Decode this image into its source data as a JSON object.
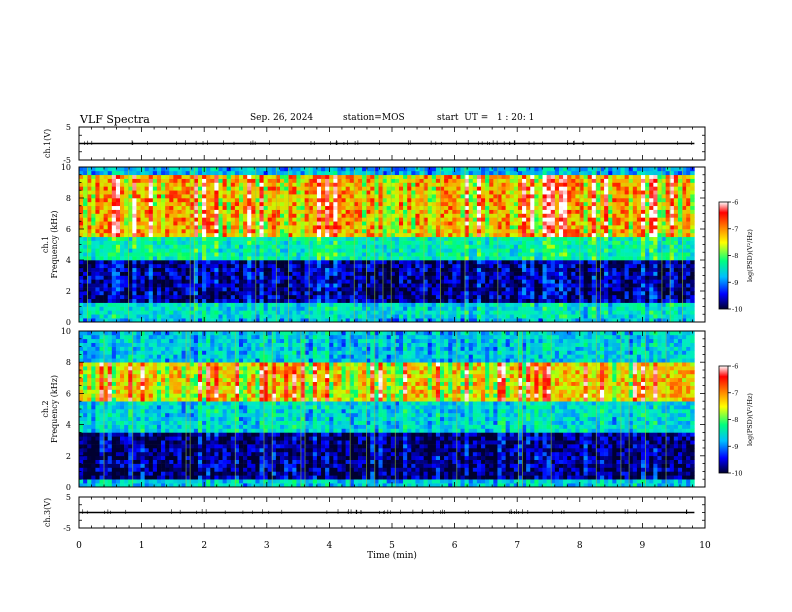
{
  "header": {
    "title": "VLF Spectra",
    "date": "Sep. 26, 2024",
    "station": "station=MOS",
    "start_ut": "start  UT =   1 : 20: 1"
  },
  "colors": {
    "spectrogram_scale": [
      "#000030",
      "#0000ff",
      "#00bfff",
      "#00ff7f",
      "#ffff00",
      "#ff8c00",
      "#ff0000",
      "#ffffff"
    ]
  },
  "chart_data": [
    {
      "type": "line",
      "panel": "ch1-waveform",
      "ylabel": "ch.1(V)",
      "ylim": [
        -5,
        5
      ],
      "yticks": [
        "5",
        "-5"
      ],
      "xlim": [
        0,
        10
      ],
      "series": [
        {
          "x": [
            0,
            9.83
          ],
          "y": [
            0,
            0
          ]
        }
      ]
    },
    {
      "type": "heatmap",
      "panel": "ch1-spectrogram",
      "ylabel_channel": "ch.1",
      "ylabel": "Frequency (kHz)",
      "ylim": [
        0,
        10
      ],
      "yticks": [
        "0",
        "2",
        "4",
        "6",
        "8",
        "10"
      ],
      "xlim": [
        0,
        10
      ],
      "data_end_min": 9.83,
      "colorbar": {
        "label": "log(PSD)(V²/Hz)",
        "range": [
          -10,
          -6
        ],
        "ticks": [
          "-6",
          "-7",
          "-8",
          "-9",
          "-10"
        ]
      },
      "bands": [
        {
          "f_min": 0.2,
          "f_max": 1.2,
          "log_psd": -8.5
        },
        {
          "f_min": 1.2,
          "f_max": 4.0,
          "log_psd": -9.7
        },
        {
          "f_min": 4.0,
          "f_max": 5.5,
          "log_psd": -8.3
        },
        {
          "f_min": 5.5,
          "f_max": 9.3,
          "log_psd": -7.0
        },
        {
          "f_min": 9.3,
          "f_max": 10.0,
          "log_psd": -8.8
        }
      ]
    },
    {
      "type": "heatmap",
      "panel": "ch2-spectrogram",
      "ylabel_channel": "ch.2",
      "ylabel": "Frequency (kHz)",
      "ylim": [
        0,
        10
      ],
      "yticks": [
        "0",
        "2",
        "4",
        "6",
        "8",
        "10"
      ],
      "xlim": [
        0,
        10
      ],
      "data_end_min": 9.83,
      "colorbar": {
        "label": "log(PSD)(V²/Hz)",
        "range": [
          -10,
          -6
        ],
        "ticks": [
          "-6",
          "-7",
          "-8",
          "-9",
          "-10"
        ]
      },
      "bands": [
        {
          "f_min": 0.0,
          "f_max": 0.5,
          "log_psd": -8.7
        },
        {
          "f_min": 0.5,
          "f_max": 3.5,
          "log_psd": -9.8
        },
        {
          "f_min": 3.5,
          "f_max": 5.5,
          "log_psd": -8.6
        },
        {
          "f_min": 5.5,
          "f_max": 8.0,
          "log_psd": -7.2
        },
        {
          "f_min": 8.0,
          "f_max": 10.0,
          "log_psd": -8.7
        }
      ]
    },
    {
      "type": "line",
      "panel": "ch3-waveform",
      "ylabel": "ch.3(V)",
      "ylim": [
        -5,
        5
      ],
      "yticks": [
        "5",
        "-5"
      ],
      "xlim": [
        0,
        10
      ],
      "xlabel": "Time (min)",
      "xticks": [
        "0",
        "1",
        "2",
        "3",
        "4",
        "5",
        "6",
        "7",
        "8",
        "9",
        "10"
      ],
      "series": [
        {
          "x": [
            0,
            9.83
          ],
          "y": [
            0,
            0
          ]
        }
      ]
    }
  ]
}
